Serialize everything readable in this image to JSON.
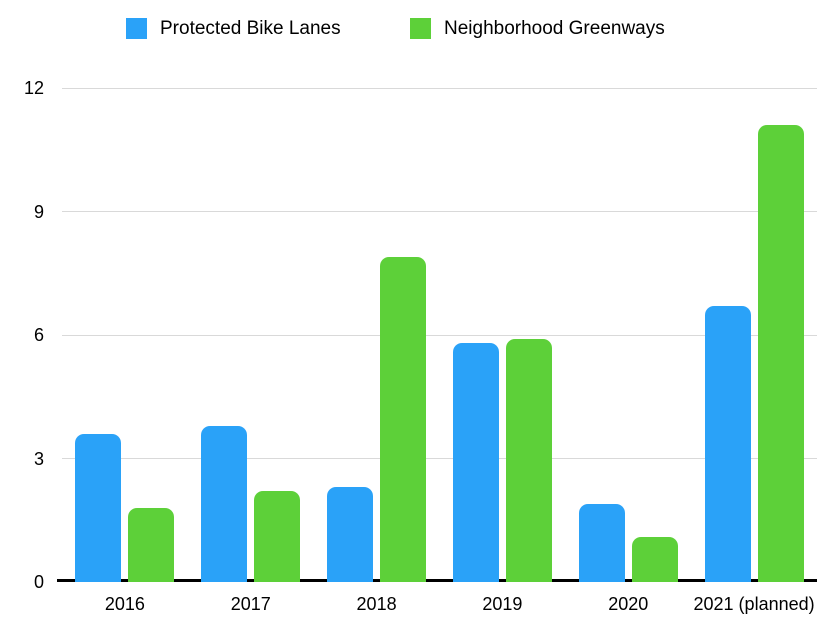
{
  "legend": {
    "items": [
      {
        "label": "Protected Bike Lanes",
        "color": "#2aa2f8"
      },
      {
        "label": "Neighborhood Greenways",
        "color": "#5dd039"
      }
    ]
  },
  "chart_data": {
    "type": "bar",
    "title": "",
    "categories": [
      "2016",
      "2017",
      "2018",
      "2019",
      "2020",
      "2021 (planned)"
    ],
    "series": [
      {
        "name": "Protected Bike Lanes",
        "color": "#2aa2f8",
        "values": [
          3.6,
          3.8,
          2.3,
          5.8,
          1.9,
          6.7
        ]
      },
      {
        "name": "Neighborhood Greenways",
        "color": "#5dd039",
        "values": [
          1.8,
          2.2,
          7.9,
          5.9,
          1.1,
          11.1
        ]
      }
    ],
    "xlabel": "",
    "ylabel": "",
    "ylim": [
      0,
      12
    ],
    "yticks": [
      0,
      3,
      6,
      9,
      12
    ],
    "grid": true,
    "legend_position": "top",
    "colors": {
      "gridline": "#d9d9d9",
      "axis_line": "#000000",
      "text": "#000000"
    }
  }
}
